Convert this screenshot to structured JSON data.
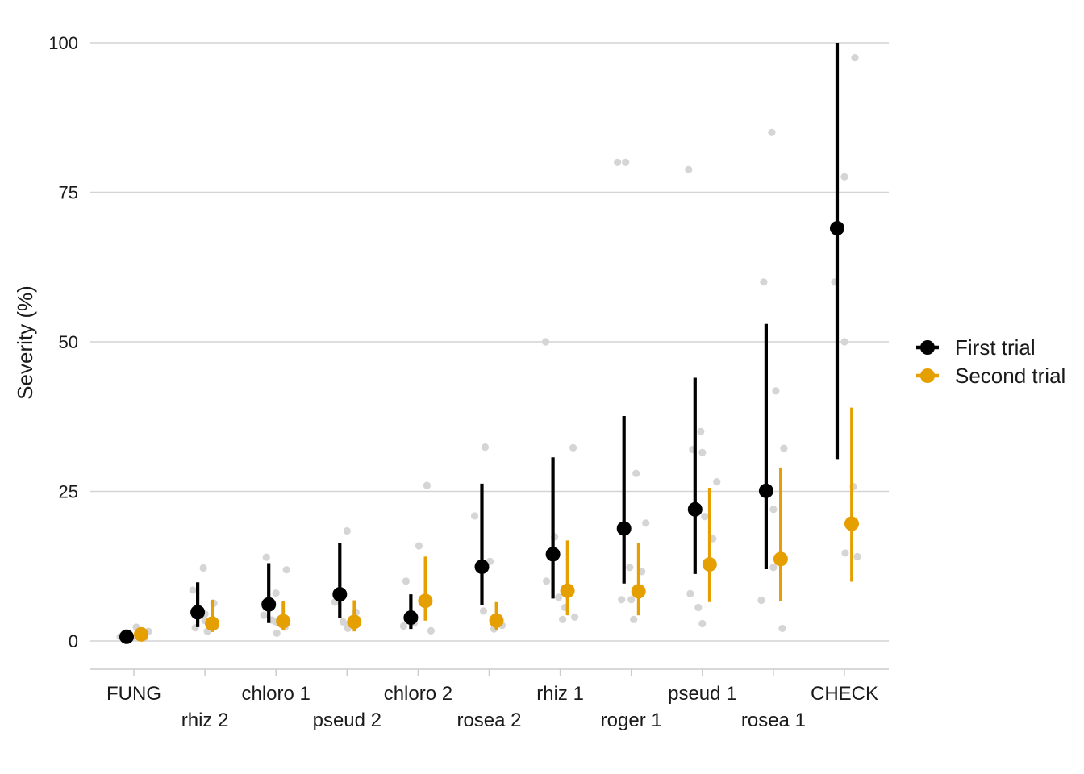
{
  "chart_data": {
    "type": "scatter",
    "title": "",
    "xlabel": "",
    "ylabel": "Severity (%)",
    "ylim": [
      -5,
      100
    ],
    "yticks": [
      0,
      25,
      50,
      75,
      100
    ],
    "grid": "horizontal major lines",
    "legend_position": "right",
    "categories": [
      "FUNG",
      "rhiz 2",
      "chloro 1",
      "pseud 2",
      "chloro 2",
      "rosea 2",
      "rhiz 1",
      "roger 1",
      "pseud 1",
      "rosea 1",
      "CHECK"
    ],
    "series": [
      {
        "name": "First trial",
        "color": "#000000",
        "mean": [
          0.7,
          4.8,
          6.1,
          7.8,
          3.9,
          12.4,
          14.5,
          18.8,
          22.0,
          25.1,
          69.0
        ],
        "lower": [
          0.7,
          2.3,
          3.0,
          3.8,
          2.0,
          6.0,
          7.1,
          9.6,
          11.2,
          12.0,
          30.4
        ],
        "upper": [
          0.7,
          9.8,
          13.0,
          16.4,
          7.8,
          26.3,
          30.7,
          37.6,
          44.0,
          53.0,
          100.0
        ],
        "raw": [
          [
            0.7,
            0.6,
            0.9
          ],
          [
            12.2,
            2.2,
            4.5,
            8.5
          ],
          [
            14.0,
            8.0,
            4.3,
            3.5
          ],
          [
            18.4,
            6.5,
            3.2
          ],
          [
            10.0,
            3.0,
            2.5
          ],
          [
            32.4,
            20.9,
            5.0
          ],
          [
            50.0,
            17.4,
            10.0,
            7.3
          ],
          [
            80.0,
            80.0,
            12.3,
            6.9,
            6.9
          ],
          [
            78.8,
            35.0,
            32.0,
            31.5,
            7.9,
            5.6
          ],
          [
            85.0,
            60.0,
            22.0,
            6.8
          ],
          [
            60.0,
            50.0
          ]
        ]
      },
      {
        "name": "Second trial",
        "color": "#E69F00",
        "mean": [
          1.1,
          2.9,
          3.3,
          3.2,
          6.7,
          3.4,
          8.4,
          8.3,
          12.8,
          13.7,
          19.6
        ],
        "lower": [
          1.1,
          1.5,
          1.8,
          1.6,
          3.4,
          1.9,
          4.3,
          4.3,
          6.5,
          6.6,
          9.9
        ],
        "upper": [
          1.1,
          6.9,
          6.6,
          6.8,
          14.1,
          6.5,
          16.8,
          16.4,
          25.6,
          29.0,
          39.0
        ],
        "raw": [
          [
            1.6,
            2.3,
            0.5
          ],
          [
            1.6,
            2.5,
            3.4,
            6.3
          ],
          [
            11.9,
            3.2,
            2.3,
            1.3
          ],
          [
            2.6,
            4.8,
            2.1
          ],
          [
            26.0,
            15.9,
            1.7
          ],
          [
            13.3,
            2.6,
            2.0
          ],
          [
            32.3,
            5.6,
            4.0,
            3.6
          ],
          [
            28.0,
            19.7,
            3.6,
            11.6
          ],
          [
            26.6,
            20.8,
            17.1,
            2.9
          ],
          [
            41.8,
            32.2,
            12.3,
            2.1
          ],
          [
            97.5,
            77.6,
            25.8,
            14.7,
            14.1
          ]
        ]
      }
    ]
  }
}
